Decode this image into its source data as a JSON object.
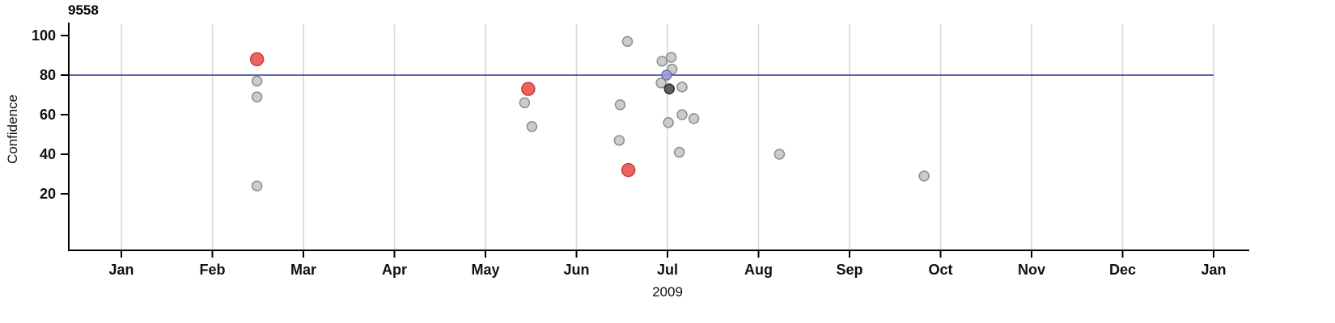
{
  "figure": {
    "title": "9558",
    "x_axis_label": "2009",
    "y_axis_label": "Confidence"
  },
  "chart_data": {
    "type": "scatter",
    "title": "9558",
    "xlabel": "2009",
    "ylabel": "Confidence",
    "x_axis": {
      "tick_labels": [
        "Jan",
        "Feb",
        "Mar",
        "Apr",
        "May",
        "Jun",
        "Jul",
        "Aug",
        "Sep",
        "Oct",
        "Nov",
        "Dec",
        "Jan"
      ],
      "unit": "months since January 2009 tick (0 = Jan, 12 = following Jan)",
      "range": [
        0,
        12
      ],
      "grid": true
    },
    "y_axis": {
      "tick_labels": [
        20,
        40,
        60,
        80,
        100
      ],
      "range": [
        0,
        108
      ],
      "grid": false
    },
    "reference_line": {
      "y": 80,
      "color": "#31319b"
    },
    "legend": "none",
    "series": [
      {
        "name": "regular-points",
        "color": "#c6c6c6",
        "stroke": "#8e8e8e",
        "radius": 6,
        "points": [
          {
            "x": 1.49,
            "y": 77
          },
          {
            "x": 1.49,
            "y": 69
          },
          {
            "x": 1.49,
            "y": 24
          },
          {
            "x": 4.43,
            "y": 66
          },
          {
            "x": 4.51,
            "y": 54
          },
          {
            "x": 5.56,
            "y": 97
          },
          {
            "x": 5.48,
            "y": 65
          },
          {
            "x": 5.47,
            "y": 47
          },
          {
            "x": 5.94,
            "y": 87
          },
          {
            "x": 6.04,
            "y": 89
          },
          {
            "x": 6.05,
            "y": 83
          },
          {
            "x": 5.93,
            "y": 76
          },
          {
            "x": 6.16,
            "y": 74
          },
          {
            "x": 6.01,
            "y": 56
          },
          {
            "x": 6.16,
            "y": 60
          },
          {
            "x": 6.29,
            "y": 58
          },
          {
            "x": 6.13,
            "y": 41
          },
          {
            "x": 7.23,
            "y": 40
          },
          {
            "x": 8.82,
            "y": 29
          }
        ]
      },
      {
        "name": "threshold-point",
        "color": "#9a9ad0",
        "stroke": "#7171b5",
        "radius": 6,
        "points": [
          {
            "x": 5.99,
            "y": 80
          }
        ]
      },
      {
        "name": "dark-point",
        "color": "#4f4f4f",
        "stroke": "#303030",
        "radius": 6,
        "points": [
          {
            "x": 6.02,
            "y": 73
          }
        ]
      },
      {
        "name": "highlighted-points",
        "color": "#e8544f",
        "stroke": "#cf3a35",
        "radius": 8,
        "points": [
          {
            "x": 1.49,
            "y": 88
          },
          {
            "x": 4.47,
            "y": 73
          },
          {
            "x": 5.57,
            "y": 32
          }
        ]
      }
    ],
    "colors": {
      "gridline": "#d9d9d9",
      "axis": "#000000",
      "tick_label": "#111111"
    }
  }
}
